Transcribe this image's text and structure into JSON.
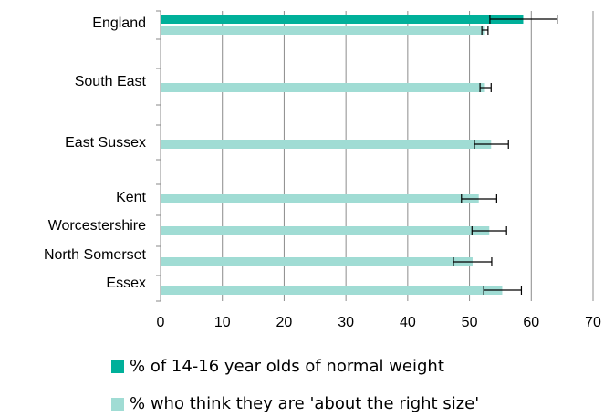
{
  "chart_data": {
    "type": "bar",
    "orientation": "horizontal",
    "categories": [
      "England",
      "South East",
      "East Sussex",
      "Kent",
      "Worcestershire",
      "North Somerset",
      "Essex"
    ],
    "series": [
      {
        "name": "% of 14-16 year olds of normal weight",
        "color": "#00b09a",
        "values": [
          58.7,
          null,
          null,
          null,
          null,
          null,
          null
        ],
        "error_low": [
          53.3,
          null,
          null,
          null,
          null,
          null,
          null
        ],
        "error_high": [
          64.2,
          null,
          null,
          null,
          null,
          null,
          null
        ]
      },
      {
        "name": "% who think they are 'about the right size'",
        "color": "#a0dcd4",
        "values": [
          52.5,
          52.5,
          53.5,
          51.5,
          53.2,
          50.5,
          55.3
        ],
        "error_low": [
          52.0,
          51.7,
          50.8,
          48.7,
          50.4,
          47.4,
          52.3
        ],
        "error_high": [
          53.0,
          53.5,
          56.3,
          54.4,
          56.0,
          53.6,
          58.4
        ]
      }
    ],
    "xlim": [
      0,
      70
    ],
    "xticks": [
      "0",
      "10",
      "20",
      "30",
      "40",
      "50",
      "60",
      "70"
    ],
    "grid": "vertical",
    "legend_position": "bottom"
  }
}
